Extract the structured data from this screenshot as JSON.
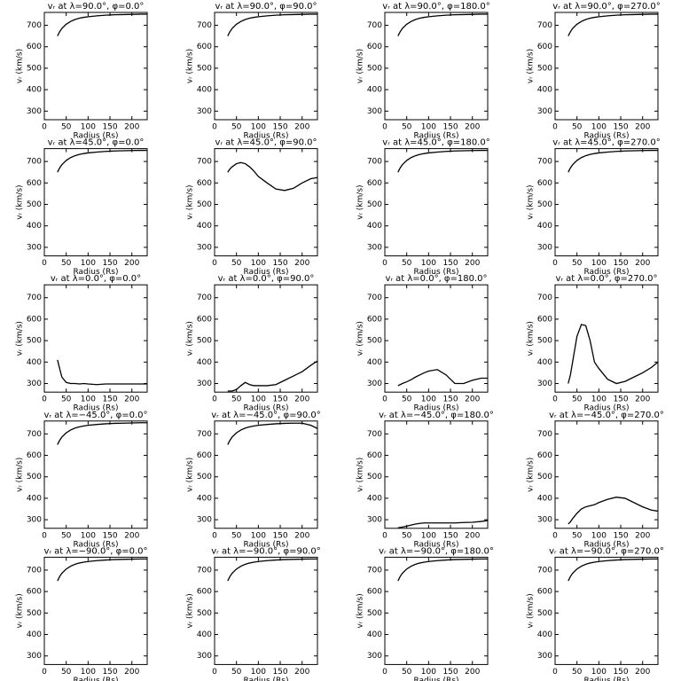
{
  "chart_data": [
    {
      "type": "line",
      "title": "vᵣ at λ=90.0°, φ=0.0°",
      "xlabel": "Radius (Rs)",
      "ylabel": "vᵣ (km/s)",
      "x": [
        30,
        35,
        40,
        50,
        60,
        70,
        80,
        90,
        100,
        120,
        140,
        160,
        180,
        200,
        220,
        235
      ],
      "values": [
        650,
        670,
        685,
        705,
        718,
        727,
        733,
        737,
        740,
        744,
        747,
        749,
        750,
        751,
        752,
        752
      ],
      "xlim": [
        0,
        235
      ],
      "ylim": [
        260,
        760
      ],
      "xticks": [
        0,
        50,
        100,
        150,
        200
      ],
      "yticks": [
        300,
        400,
        500,
        600,
        700
      ],
      "color": "#000000"
    },
    {
      "type": "line",
      "title": "vᵣ at λ=90.0°, φ=90.0°",
      "xlabel": "Radius (Rs)",
      "ylabel": "vᵣ (km/s)",
      "x": [
        30,
        35,
        40,
        50,
        60,
        70,
        80,
        90,
        100,
        120,
        140,
        160,
        180,
        200,
        220,
        235
      ],
      "values": [
        650,
        670,
        685,
        705,
        718,
        727,
        733,
        737,
        740,
        744,
        747,
        749,
        750,
        751,
        752,
        752
      ],
      "xlim": [
        0,
        235
      ],
      "ylim": [
        260,
        760
      ],
      "xticks": [
        0,
        50,
        100,
        150,
        200
      ],
      "yticks": [
        300,
        400,
        500,
        600,
        700
      ],
      "color": "#000000"
    },
    {
      "type": "line",
      "title": "vᵣ at λ=90.0°, φ=180.0°",
      "xlabel": "Radius (Rs)",
      "ylabel": "vᵣ (km/s)",
      "x": [
        30,
        35,
        40,
        50,
        60,
        70,
        80,
        90,
        100,
        120,
        140,
        160,
        180,
        200,
        220,
        235
      ],
      "values": [
        650,
        670,
        685,
        705,
        718,
        727,
        733,
        737,
        740,
        744,
        747,
        749,
        750,
        751,
        752,
        752
      ],
      "xlim": [
        0,
        235
      ],
      "ylim": [
        260,
        760
      ],
      "xticks": [
        0,
        50,
        100,
        150,
        200
      ],
      "yticks": [
        300,
        400,
        500,
        600,
        700
      ],
      "color": "#000000"
    },
    {
      "type": "line",
      "title": "vᵣ at λ=90.0°, φ=270.0°",
      "xlabel": "Radius (Rs)",
      "ylabel": "vᵣ (km/s)",
      "x": [
        30,
        35,
        40,
        50,
        60,
        70,
        80,
        90,
        100,
        120,
        140,
        160,
        180,
        200,
        220,
        235
      ],
      "values": [
        650,
        670,
        685,
        705,
        718,
        727,
        733,
        737,
        740,
        744,
        747,
        749,
        750,
        751,
        752,
        752
      ],
      "xlim": [
        0,
        235
      ],
      "ylim": [
        260,
        760
      ],
      "xticks": [
        0,
        50,
        100,
        150,
        200
      ],
      "yticks": [
        300,
        400,
        500,
        600,
        700
      ],
      "color": "#000000"
    },
    {
      "type": "line",
      "title": "vᵣ at λ=45.0°, φ=0.0°",
      "xlabel": "Radius (Rs)",
      "ylabel": "vᵣ (km/s)",
      "x": [
        30,
        35,
        40,
        50,
        60,
        70,
        80,
        90,
        100,
        120,
        140,
        160,
        180,
        200,
        220,
        235
      ],
      "values": [
        650,
        670,
        685,
        705,
        718,
        727,
        733,
        737,
        740,
        744,
        747,
        749,
        750,
        751,
        752,
        752
      ],
      "xlim": [
        0,
        235
      ],
      "ylim": [
        260,
        760
      ],
      "xticks": [
        0,
        50,
        100,
        150,
        200
      ],
      "yticks": [
        300,
        400,
        500,
        600,
        700
      ],
      "color": "#000000"
    },
    {
      "type": "line",
      "title": "vᵣ at λ=45.0°, φ=90.0°",
      "xlabel": "Radius (Rs)",
      "ylabel": "vᵣ (km/s)",
      "x": [
        30,
        35,
        40,
        50,
        60,
        70,
        80,
        90,
        100,
        120,
        140,
        160,
        180,
        200,
        220,
        235
      ],
      "values": [
        650,
        665,
        675,
        690,
        695,
        690,
        675,
        655,
        630,
        600,
        572,
        565,
        575,
        600,
        620,
        625
      ],
      "xlim": [
        0,
        235
      ],
      "ylim": [
        260,
        760
      ],
      "xticks": [
        0,
        50,
        100,
        150,
        200
      ],
      "yticks": [
        300,
        400,
        500,
        600,
        700
      ],
      "color": "#000000"
    },
    {
      "type": "line",
      "title": "vᵣ at λ=45.0°, φ=180.0°",
      "xlabel": "Radius (Rs)",
      "ylabel": "vᵣ (km/s)",
      "x": [
        30,
        35,
        40,
        50,
        60,
        70,
        80,
        90,
        100,
        120,
        140,
        160,
        180,
        200,
        220,
        235
      ],
      "values": [
        650,
        670,
        685,
        705,
        718,
        727,
        733,
        737,
        740,
        744,
        747,
        749,
        750,
        751,
        752,
        752
      ],
      "xlim": [
        0,
        235
      ],
      "ylim": [
        260,
        760
      ],
      "xticks": [
        0,
        50,
        100,
        150,
        200
      ],
      "yticks": [
        300,
        400,
        500,
        600,
        700
      ],
      "color": "#000000"
    },
    {
      "type": "line",
      "title": "vᵣ at λ=45.0°, φ=270.0°",
      "xlabel": "Radius (Rs)",
      "ylabel": "vᵣ (km/s)",
      "x": [
        30,
        35,
        40,
        50,
        60,
        70,
        80,
        90,
        100,
        120,
        140,
        160,
        180,
        200,
        220,
        235
      ],
      "values": [
        650,
        670,
        685,
        705,
        718,
        727,
        733,
        737,
        740,
        744,
        747,
        749,
        750,
        751,
        752,
        752
      ],
      "xlim": [
        0,
        235
      ],
      "ylim": [
        260,
        760
      ],
      "xticks": [
        0,
        50,
        100,
        150,
        200
      ],
      "yticks": [
        300,
        400,
        500,
        600,
        700
      ],
      "color": "#000000"
    },
    {
      "type": "line",
      "title": "vᵣ at λ=0.0°, φ=0.0°",
      "xlabel": "Radius (Rs)",
      "ylabel": "vᵣ (km/s)",
      "x": [
        30,
        35,
        40,
        50,
        60,
        70,
        80,
        90,
        100,
        120,
        140,
        160,
        180,
        200,
        220,
        235
      ],
      "values": [
        410,
        370,
        330,
        305,
        300,
        300,
        298,
        300,
        298,
        295,
        298,
        298,
        298,
        298,
        298,
        298
      ],
      "xlim": [
        0,
        235
      ],
      "ylim": [
        260,
        760
      ],
      "xticks": [
        0,
        50,
        100,
        150,
        200
      ],
      "yticks": [
        300,
        400,
        500,
        600,
        700
      ],
      "color": "#000000"
    },
    {
      "type": "line",
      "title": "vᵣ at λ=0.0°, φ=90.0°",
      "xlabel": "Radius (Rs)",
      "ylabel": "vᵣ (km/s)",
      "x": [
        30,
        35,
        40,
        50,
        60,
        70,
        80,
        90,
        100,
        120,
        140,
        160,
        180,
        200,
        220,
        235
      ],
      "values": [
        265,
        265,
        265,
        272,
        290,
        305,
        295,
        290,
        290,
        290,
        295,
        315,
        335,
        355,
        385,
        405
      ],
      "xlim": [
        0,
        235
      ],
      "ylim": [
        260,
        760
      ],
      "xticks": [
        0,
        50,
        100,
        150,
        200
      ],
      "yticks": [
        300,
        400,
        500,
        600,
        700
      ],
      "color": "#000000"
    },
    {
      "type": "line",
      "title": "vᵣ at λ=0.0°, φ=180.0°",
      "xlabel": "Radius (Rs)",
      "ylabel": "vᵣ (km/s)",
      "x": [
        30,
        35,
        40,
        50,
        60,
        70,
        80,
        90,
        100,
        120,
        140,
        160,
        180,
        200,
        220,
        235
      ],
      "values": [
        290,
        295,
        300,
        308,
        318,
        330,
        340,
        350,
        358,
        365,
        340,
        300,
        300,
        315,
        325,
        325
      ],
      "xlim": [
        0,
        235
      ],
      "ylim": [
        260,
        760
      ],
      "xticks": [
        0,
        50,
        100,
        150,
        200
      ],
      "yticks": [
        300,
        400,
        500,
        600,
        700
      ],
      "color": "#000000"
    },
    {
      "type": "line",
      "title": "vᵣ at λ=0.0°, φ=270.0°",
      "xlabel": "Radius (Rs)",
      "ylabel": "vᵣ (km/s)",
      "x": [
        30,
        35,
        40,
        50,
        60,
        70,
        80,
        90,
        100,
        120,
        140,
        160,
        180,
        200,
        220,
        235
      ],
      "values": [
        300,
        340,
        400,
        520,
        575,
        570,
        500,
        400,
        370,
        320,
        300,
        310,
        330,
        350,
        375,
        400
      ],
      "xlim": [
        0,
        235
      ],
      "ylim": [
        260,
        760
      ],
      "xticks": [
        0,
        50,
        100,
        150,
        200
      ],
      "yticks": [
        300,
        400,
        500,
        600,
        700
      ],
      "color": "#000000"
    },
    {
      "type": "line",
      "title": "vᵣ at λ=−45.0°, φ=0.0°",
      "xlabel": "Radius (Rs)",
      "ylabel": "vᵣ (km/s)",
      "x": [
        30,
        35,
        40,
        50,
        60,
        70,
        80,
        90,
        100,
        120,
        140,
        160,
        180,
        200,
        220,
        235
      ],
      "values": [
        650,
        670,
        685,
        705,
        718,
        727,
        733,
        737,
        740,
        744,
        747,
        749,
        750,
        751,
        752,
        752
      ],
      "xlim": [
        0,
        235
      ],
      "ylim": [
        260,
        760
      ],
      "xticks": [
        0,
        50,
        100,
        150,
        200
      ],
      "yticks": [
        300,
        400,
        500,
        600,
        700
      ],
      "color": "#000000"
    },
    {
      "type": "line",
      "title": "vᵣ at λ=−45.0°, φ=90.0°",
      "xlabel": "Radius (Rs)",
      "ylabel": "vᵣ (km/s)",
      "x": [
        30,
        35,
        40,
        50,
        60,
        70,
        80,
        90,
        100,
        120,
        140,
        160,
        180,
        200,
        220,
        235
      ],
      "values": [
        650,
        670,
        685,
        705,
        718,
        727,
        733,
        737,
        740,
        744,
        747,
        749,
        750,
        750,
        740,
        725
      ],
      "xlim": [
        0,
        235
      ],
      "ylim": [
        260,
        760
      ],
      "xticks": [
        0,
        50,
        100,
        150,
        200
      ],
      "yticks": [
        300,
        400,
        500,
        600,
        700
      ],
      "color": "#000000"
    },
    {
      "type": "line",
      "title": "vᵣ at λ=−45.0°, φ=180.0°",
      "xlabel": "Radius (Rs)",
      "ylabel": "vᵣ (km/s)",
      "x": [
        30,
        35,
        40,
        50,
        60,
        70,
        80,
        90,
        100,
        120,
        140,
        160,
        180,
        200,
        220,
        235
      ],
      "values": [
        262,
        264,
        266,
        270,
        275,
        280,
        283,
        285,
        285,
        285,
        285,
        285,
        287,
        288,
        292,
        296
      ],
      "xlim": [
        0,
        235
      ],
      "ylim": [
        260,
        760
      ],
      "xticks": [
        0,
        50,
        100,
        150,
        200
      ],
      "yticks": [
        300,
        400,
        500,
        600,
        700
      ],
      "color": "#000000"
    },
    {
      "type": "line",
      "title": "vᵣ at λ=−45.0°, φ=270.0°",
      "xlabel": "Radius (Rs)",
      "ylabel": "vᵣ (km/s)",
      "x": [
        30,
        35,
        40,
        50,
        60,
        70,
        80,
        90,
        100,
        120,
        140,
        160,
        180,
        200,
        220,
        235
      ],
      "values": [
        280,
        290,
        305,
        330,
        350,
        360,
        365,
        370,
        380,
        395,
        405,
        400,
        380,
        360,
        345,
        340
      ],
      "xlim": [
        0,
        235
      ],
      "ylim": [
        260,
        760
      ],
      "xticks": [
        0,
        50,
        100,
        150,
        200
      ],
      "yticks": [
        300,
        400,
        500,
        600,
        700
      ],
      "color": "#000000"
    },
    {
      "type": "line",
      "title": "vᵣ at λ=−90.0°, φ=0.0°",
      "xlabel": "Radius (Rs)",
      "ylabel": "vᵣ (km/s)",
      "x": [
        30,
        35,
        40,
        50,
        60,
        70,
        80,
        90,
        100,
        120,
        140,
        160,
        180,
        200,
        220,
        235
      ],
      "values": [
        650,
        670,
        685,
        705,
        718,
        727,
        733,
        737,
        740,
        744,
        747,
        749,
        750,
        751,
        752,
        752
      ],
      "xlim": [
        0,
        235
      ],
      "ylim": [
        260,
        760
      ],
      "xticks": [
        0,
        50,
        100,
        150,
        200
      ],
      "yticks": [
        300,
        400,
        500,
        600,
        700
      ],
      "color": "#000000"
    },
    {
      "type": "line",
      "title": "vᵣ at λ=−90.0°, φ=90.0°",
      "xlabel": "Radius (Rs)",
      "ylabel": "vᵣ (km/s)",
      "x": [
        30,
        35,
        40,
        50,
        60,
        70,
        80,
        90,
        100,
        120,
        140,
        160,
        180,
        200,
        220,
        235
      ],
      "values": [
        650,
        670,
        685,
        705,
        718,
        727,
        733,
        737,
        740,
        744,
        747,
        749,
        750,
        751,
        752,
        752
      ],
      "xlim": [
        0,
        235
      ],
      "ylim": [
        260,
        760
      ],
      "xticks": [
        0,
        50,
        100,
        150,
        200
      ],
      "yticks": [
        300,
        400,
        500,
        600,
        700
      ],
      "color": "#000000"
    },
    {
      "type": "line",
      "title": "vᵣ at λ=−90.0°, φ=180.0°",
      "xlabel": "Radius (Rs)",
      "ylabel": "vᵣ (km/s)",
      "x": [
        30,
        35,
        40,
        50,
        60,
        70,
        80,
        90,
        100,
        120,
        140,
        160,
        180,
        200,
        220,
        235
      ],
      "values": [
        650,
        670,
        685,
        705,
        718,
        727,
        733,
        737,
        740,
        744,
        747,
        749,
        750,
        751,
        752,
        752
      ],
      "xlim": [
        0,
        235
      ],
      "ylim": [
        260,
        760
      ],
      "xticks": [
        0,
        50,
        100,
        150,
        200
      ],
      "yticks": [
        300,
        400,
        500,
        600,
        700
      ],
      "color": "#000000"
    },
    {
      "type": "line",
      "title": "vᵣ at λ=−90.0°, φ=270.0°",
      "xlabel": "Radius (Rs)",
      "ylabel": "vᵣ (km/s)",
      "x": [
        30,
        35,
        40,
        50,
        60,
        70,
        80,
        90,
        100,
        120,
        140,
        160,
        180,
        200,
        220,
        235
      ],
      "values": [
        650,
        670,
        685,
        705,
        718,
        727,
        733,
        737,
        740,
        744,
        747,
        749,
        750,
        751,
        752,
        752
      ],
      "xlim": [
        0,
        235
      ],
      "ylim": [
        260,
        760
      ],
      "xticks": [
        0,
        50,
        100,
        150,
        200
      ],
      "yticks": [
        300,
        400,
        500,
        600,
        700
      ],
      "color": "#000000"
    }
  ]
}
